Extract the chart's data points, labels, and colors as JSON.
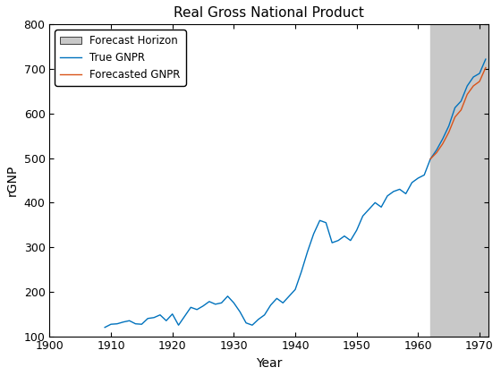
{
  "title": "Real Gross National Product",
  "xlabel": "Year",
  "ylabel": "rGNP",
  "xlim": [
    1900,
    1971.5
  ],
  "ylim": [
    100,
    800
  ],
  "xticks": [
    1900,
    1910,
    1920,
    1930,
    1940,
    1950,
    1960,
    1970
  ],
  "yticks": [
    100,
    200,
    300,
    400,
    500,
    600,
    700,
    800
  ],
  "forecast_start": 1962,
  "forecast_end": 1972,
  "true_gnpr_color": "#0072BD",
  "forecasted_gnpr_color": "#D95319",
  "forecast_horizon_color": "#C8C8C8",
  "true_gnpr_years": [
    1909,
    1910,
    1911,
    1912,
    1913,
    1914,
    1915,
    1916,
    1917,
    1918,
    1919,
    1920,
    1921,
    1922,
    1923,
    1924,
    1925,
    1926,
    1927,
    1928,
    1929,
    1930,
    1931,
    1932,
    1933,
    1934,
    1935,
    1936,
    1937,
    1938,
    1939,
    1940,
    1941,
    1942,
    1943,
    1944,
    1945,
    1946,
    1947,
    1948,
    1949,
    1950,
    1951,
    1952,
    1953,
    1954,
    1955,
    1956,
    1957,
    1958,
    1959,
    1960,
    1961,
    1962,
    1963,
    1964,
    1965,
    1966,
    1967,
    1968,
    1969,
    1970,
    1971
  ],
  "true_gnpr_values": [
    120,
    127,
    128,
    132,
    135,
    128,
    127,
    140,
    142,
    148,
    135,
    150,
    125,
    145,
    165,
    160,
    168,
    178,
    172,
    175,
    190,
    175,
    155,
    130,
    125,
    138,
    148,
    170,
    185,
    175,
    190,
    205,
    245,
    290,
    330,
    360,
    355,
    310,
    315,
    325,
    315,
    338,
    370,
    385,
    400,
    390,
    415,
    425,
    430,
    420,
    445,
    455,
    462,
    498,
    518,
    543,
    572,
    613,
    628,
    662,
    682,
    690,
    722
  ],
  "forecasted_gnpr_years": [
    1962,
    1963,
    1964,
    1965,
    1966,
    1967,
    1968,
    1969,
    1970,
    1971
  ],
  "forecasted_gnpr_values": [
    498,
    512,
    532,
    558,
    592,
    608,
    643,
    662,
    672,
    703
  ],
  "legend_label_patch": "Forecast Horizon",
  "legend_label_true": "True GNPR",
  "legend_label_forecast": "Forecasted GNPR"
}
